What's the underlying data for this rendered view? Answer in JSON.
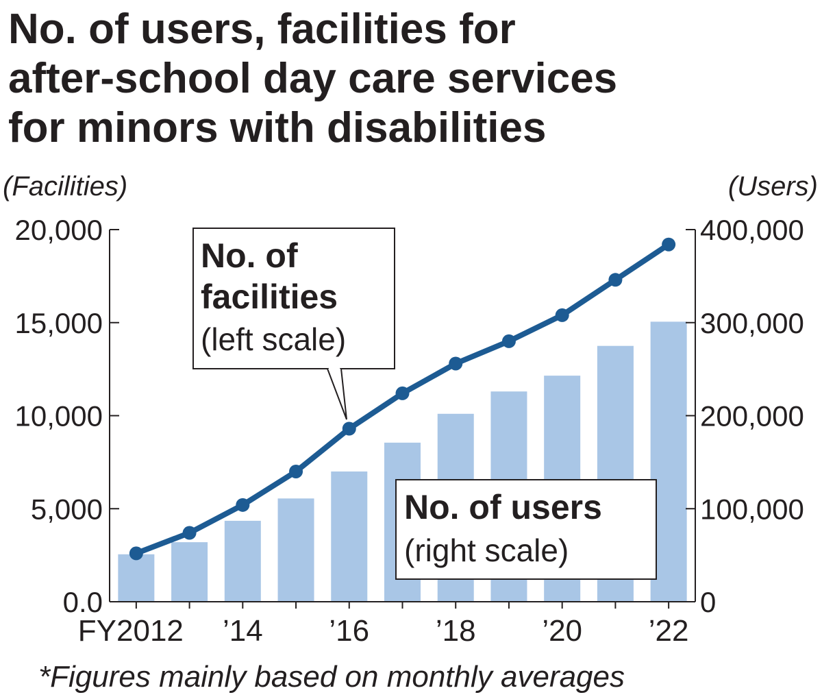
{
  "chart_data": {
    "type": "bar+line",
    "title_lines": [
      "No. of users, facilities for",
      "after-school day care services",
      "for minors with disabilities"
    ],
    "left_axis": {
      "unit": "(Facilities)",
      "range": [
        0,
        20000
      ],
      "ticks": [
        0,
        5000,
        10000,
        15000,
        20000
      ],
      "tick_labels": [
        "0.0",
        "5,000",
        "10,000",
        "15,000",
        "20,000"
      ]
    },
    "right_axis": {
      "unit": "(Users)",
      "range": [
        0,
        400000
      ],
      "ticks": [
        0,
        100000,
        200000,
        300000,
        400000
      ],
      "tick_labels": [
        "0",
        "100,000",
        "200,000",
        "300,000",
        "400,000"
      ]
    },
    "x": [
      "2012",
      "2013",
      "2014",
      "2015",
      "2016",
      "2017",
      "2018",
      "2019",
      "2020",
      "2021",
      "2022"
    ],
    "x_tick_labels": [
      "FY2012",
      "",
      "’14",
      "",
      "’16",
      "",
      "’18",
      "",
      "’20",
      "",
      "’22"
    ],
    "series": [
      {
        "name_lines": [
          "No. of users",
          "(right scale)"
        ],
        "kind": "bar",
        "axis": "right",
        "color": "#a9c6e6",
        "values": [
          51000,
          64000,
          87000,
          111000,
          140000,
          171000,
          202000,
          226000,
          243000,
          275000,
          301000
        ]
      },
      {
        "name_lines": [
          "No. of",
          "facilities",
          "(left scale)"
        ],
        "kind": "line",
        "axis": "left",
        "color": "#1d5b93",
        "values": [
          2600,
          3700,
          5200,
          7000,
          9300,
          11200,
          12800,
          14000,
          15400,
          17300,
          19200
        ]
      }
    ],
    "note": "*Figures mainly based on monthly averages",
    "grid": false
  }
}
